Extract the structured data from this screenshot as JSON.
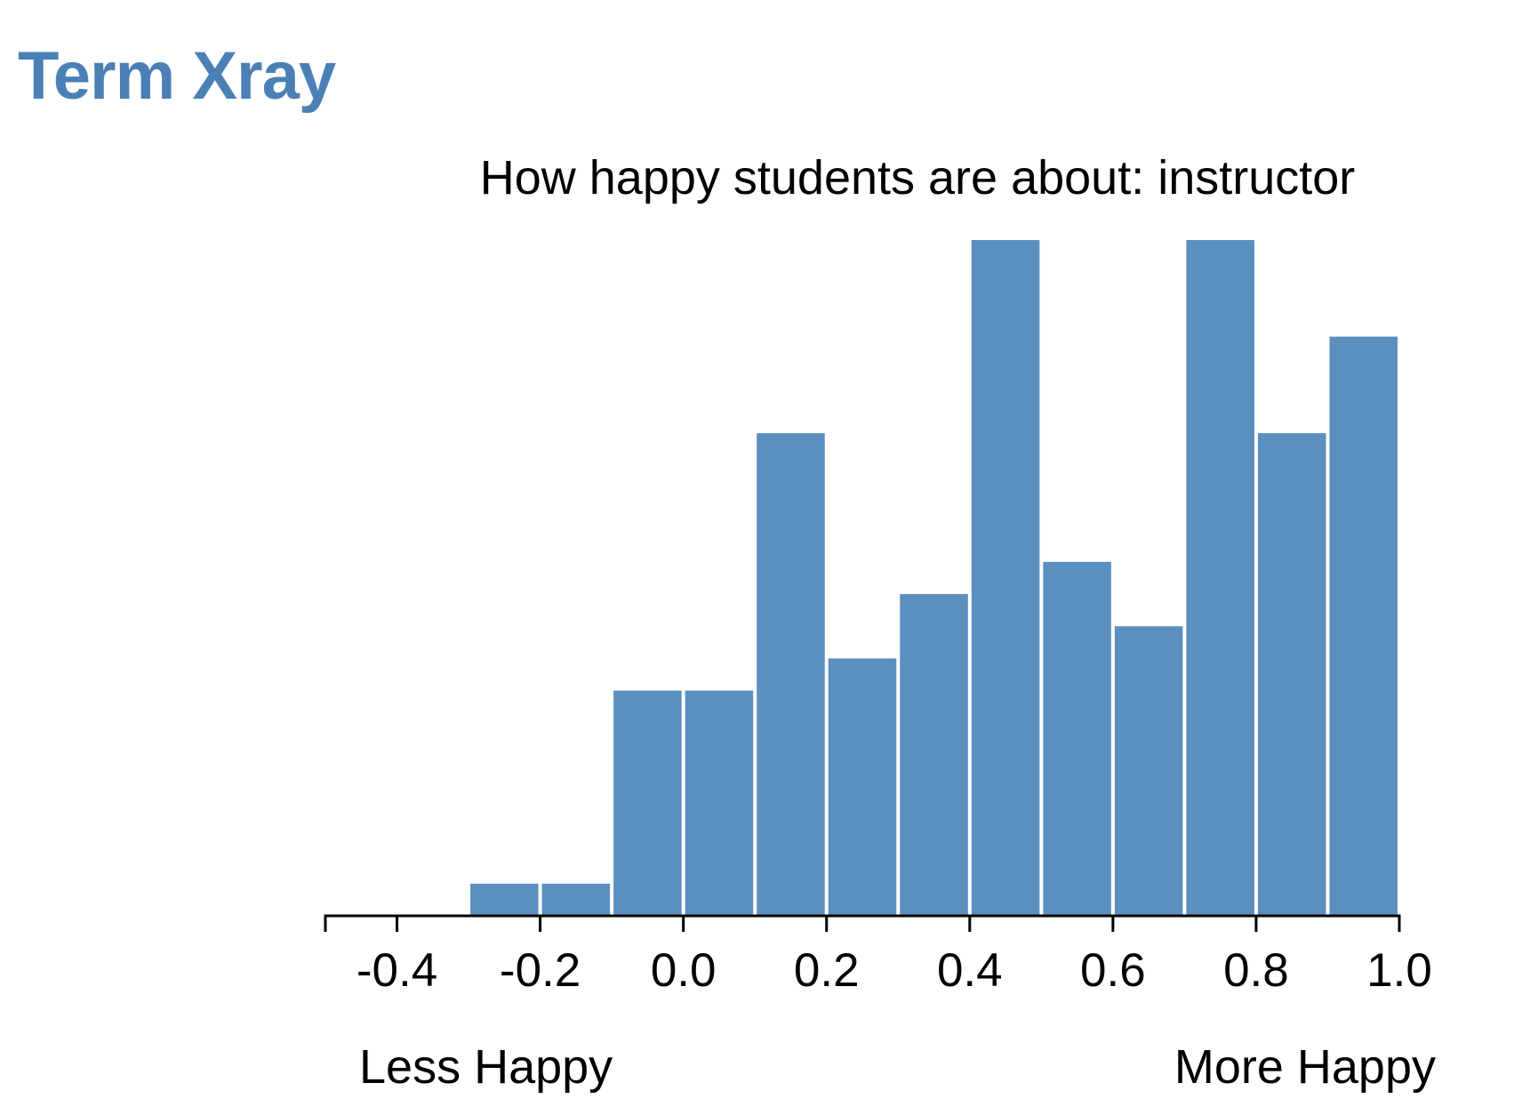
{
  "app": {
    "title": "Term Xray"
  },
  "colors": {
    "title": "#4a80b5",
    "bar": "#5b8fbf",
    "axis": "#000000"
  },
  "chart_data": {
    "type": "bar",
    "title": "How happy students are about: instructor",
    "xlabel": "",
    "ylabel": "",
    "grid": false,
    "xlim": [
      -0.5,
      1.0
    ],
    "ylim": [
      0,
      21
    ],
    "x_ticks": [
      "-0.4",
      "-0.2",
      "0.0",
      "0.2",
      "0.4",
      "0.6",
      "0.8",
      "1.0"
    ],
    "end_labels": {
      "left": "Less Happy",
      "right": "More Happy"
    },
    "bins": [
      {
        "x0": -0.3,
        "x1": -0.2,
        "count": 1
      },
      {
        "x0": -0.2,
        "x1": -0.1,
        "count": 1
      },
      {
        "x0": -0.1,
        "x1": 0.0,
        "count": 7
      },
      {
        "x0": 0.0,
        "x1": 0.1,
        "count": 7
      },
      {
        "x0": 0.1,
        "x1": 0.2,
        "count": 15
      },
      {
        "x0": 0.2,
        "x1": 0.3,
        "count": 8
      },
      {
        "x0": 0.3,
        "x1": 0.4,
        "count": 10
      },
      {
        "x0": 0.4,
        "x1": 0.5,
        "count": 21
      },
      {
        "x0": 0.5,
        "x1": 0.6,
        "count": 11
      },
      {
        "x0": 0.6,
        "x1": 0.7,
        "count": 9
      },
      {
        "x0": 0.7,
        "x1": 0.8,
        "count": 21
      },
      {
        "x0": 0.8,
        "x1": 0.9,
        "count": 15
      },
      {
        "x0": 0.9,
        "x1": 1.0,
        "count": 18
      }
    ]
  }
}
